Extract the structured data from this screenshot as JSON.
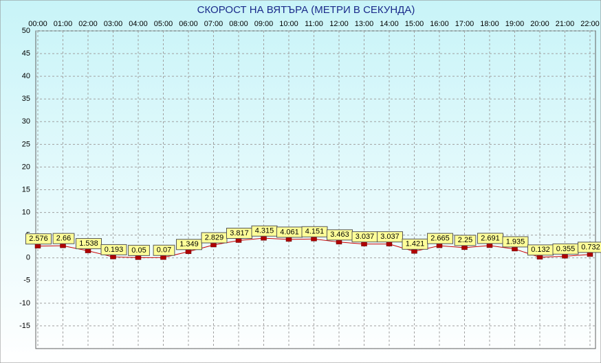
{
  "chart_data": {
    "type": "line",
    "title": "СКОРОСТ НА ВЯТЪРА (МЕТРИ В СЕКУНДА)",
    "categories": [
      "00:00",
      "01:00",
      "02:00",
      "03:00",
      "04:00",
      "05:00",
      "06:00",
      "07:00",
      "08:00",
      "09:00",
      "10:00",
      "11:00",
      "12:00",
      "13:00",
      "14:00",
      "15:00",
      "16:00",
      "17:00",
      "18:00",
      "19:00",
      "20:00",
      "21:00",
      "22:00"
    ],
    "series": [
      {
        "name": "Скорост",
        "color": "#cc0000",
        "values": [
          2.576,
          2.66,
          1.538,
          0.193,
          0.05,
          0.07,
          1.349,
          2.829,
          3.817,
          4.315,
          4.061,
          4.151,
          3.463,
          3.037,
          3.037,
          1.421,
          2.665,
          2.25,
          2.691,
          1.935,
          0.132,
          0.355,
          0.732
        ]
      }
    ],
    "ylim": [
      -20,
      50
    ],
    "yticks": [
      -15,
      -10,
      -5,
      0,
      5,
      10,
      15,
      20,
      25,
      30,
      35,
      40,
      45,
      50
    ],
    "grid": true
  }
}
